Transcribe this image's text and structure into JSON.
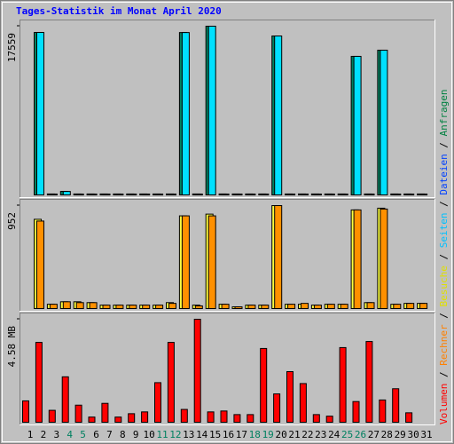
{
  "chart_data": {
    "type": "bar",
    "title": "Tages-Statistik im Monat April 2020",
    "categories": [
      "1",
      "2",
      "3",
      "4",
      "5",
      "6",
      "7",
      "8",
      "9",
      "10",
      "11",
      "12",
      "13",
      "14",
      "15",
      "16",
      "17",
      "18",
      "19",
      "20",
      "21",
      "22",
      "23",
      "24",
      "25",
      "26",
      "27",
      "28",
      "29",
      "30",
      "31"
    ],
    "weekend": [
      "4",
      "5",
      "11",
      "12",
      "18",
      "19",
      "25",
      "26"
    ],
    "weekday_color": "#000000",
    "weekend_color": "#008060",
    "legend": [
      {
        "name": "Volumen",
        "color": "#ff0000"
      },
      {
        "name": "Rechner",
        "color": "#ff8000"
      },
      {
        "name": "Besuche",
        "color": "#e0e000"
      },
      {
        "name": "Seiten",
        "color": "#00c0ff"
      },
      {
        "name": "Dateien",
        "color": "#0040ff"
      },
      {
        "name": "Anfragen",
        "color": "#008040"
      }
    ],
    "legend_separator": " / ",
    "panels": [
      {
        "ylim": [
          0,
          17559
        ],
        "yticks": [
          17559
        ],
        "series": [
          {
            "name": "Anfragen",
            "color": "#008060",
            "values": [
              16912,
              100,
              370,
              100,
              100,
              100,
              100,
              100,
              100,
              100,
              100,
              16900,
              100,
              17559,
              100,
              100,
              100,
              100,
              16540,
              100,
              100,
              100,
              100,
              100,
              14420,
              100,
              15060,
              100,
              100,
              100,
              null
            ]
          },
          {
            "name": "Seiten",
            "color": "#00e0ff",
            "values": [
              16912,
              90,
              360,
              90,
              90,
              90,
              90,
              90,
              90,
              90,
              90,
              16900,
              90,
              17559,
              90,
              90,
              90,
              90,
              16540,
              90,
              90,
              90,
              90,
              90,
              14420,
              90,
              15060,
              90,
              90,
              90,
              null
            ]
          }
        ]
      },
      {
        "ylim": [
          0,
          952
        ],
        "yticks": [
          952
        ],
        "series": [
          {
            "name": "Besuche",
            "color": "#ffff40",
            "values": [
              825,
              40,
              63,
              63,
              55,
              32,
              32,
              32,
              32,
              32,
              55,
              857,
              32,
              873,
              40,
              16,
              32,
              32,
              952,
              40,
              40,
              32,
              40,
              40,
              912,
              55,
              928,
              40,
              48,
              48,
              null
            ]
          },
          {
            "name": "Rechner",
            "color": "#ff9000",
            "values": [
              809,
              40,
              63,
              55,
              55,
              32,
              32,
              32,
              32,
              32,
              48,
              857,
              25,
              857,
              40,
              16,
              32,
              32,
              952,
              40,
              48,
              32,
              40,
              40,
              912,
              55,
              920,
              40,
              48,
              48,
              null
            ]
          }
        ]
      },
      {
        "ylim": [
          0,
          4.58
        ],
        "yticks": [
          {
            "value": 4.58,
            "label": "4.58 MB"
          }
        ],
        "series": [
          {
            "name": "Volumen",
            "color": "#ff0000",
            "values": [
              0.95,
              3.55,
              0.53,
              2.02,
              0.76,
              0.23,
              0.84,
              0.23,
              0.38,
              0.46,
              1.76,
              3.55,
              0.57,
              4.58,
              0.46,
              0.5,
              0.34,
              0.34,
              3.28,
              1.26,
              2.25,
              1.72,
              0.34,
              0.27,
              3.32,
              0.92,
              3.59,
              0.99,
              1.49,
              0.42,
              null
            ]
          }
        ]
      }
    ]
  }
}
